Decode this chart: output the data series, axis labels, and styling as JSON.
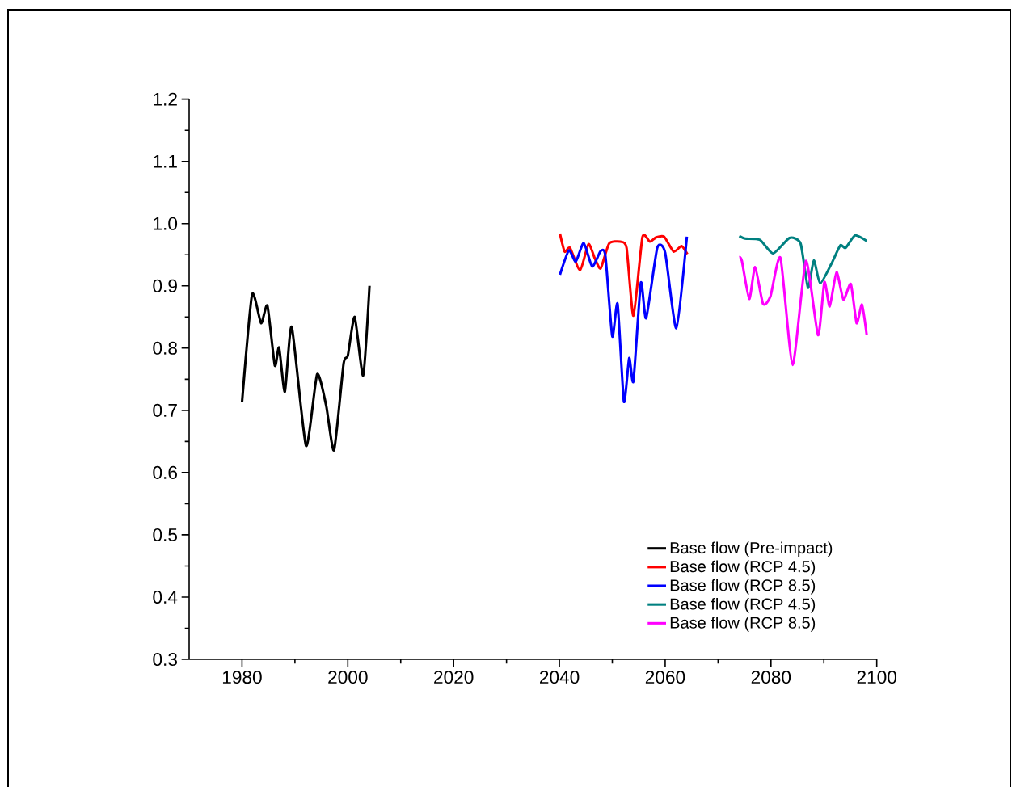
{
  "chart_data": {
    "type": "line",
    "series": [
      {
        "name": "Base flow (Pre-impact)",
        "color": "#000000",
        "x": [
          1980.0,
          1981.9,
          1983.6,
          1984.8,
          1986.2,
          1987.0,
          1988.1,
          1989.4,
          1992.1,
          1994.2,
          1995.9,
          1997.4,
          1999.2,
          2000.0,
          2001.3,
          2002.9,
          2004.1
        ],
        "values": [
          0.713,
          0.886,
          0.84,
          0.868,
          0.772,
          0.801,
          0.73,
          0.834,
          0.643,
          0.758,
          0.708,
          0.636,
          0.775,
          0.788,
          0.85,
          0.756,
          0.9
        ]
      },
      {
        "name": "Base flow (RCP 4.5)",
        "color": "#ff0000",
        "x": [
          2040.1,
          2041.0,
          2042.0,
          2043.9,
          2045.5,
          2046.7,
          2047.8,
          2049.4,
          2051.5,
          2052.7,
          2054.0,
          2055.7,
          2057.1,
          2058.3,
          2059.8,
          2061.6,
          2063.1,
          2064.2
        ],
        "values": [
          0.984,
          0.955,
          0.961,
          0.925,
          0.967,
          0.944,
          0.928,
          0.968,
          0.971,
          0.961,
          0.852,
          0.978,
          0.971,
          0.978,
          0.979,
          0.955,
          0.964,
          0.951
        ]
      },
      {
        "name": "Base flow (RCP 8.5)",
        "color": "#0000ff",
        "x": [
          2040.1,
          2041.8,
          2043.1,
          2044.6,
          2046.2,
          2047.8,
          2048.7,
          2050.0,
          2051.0,
          2052.2,
          2053.2,
          2054.0,
          2055.4,
          2056.4,
          2058.5,
          2060.0,
          2062.1,
          2064.1
        ],
        "values": [
          0.918,
          0.957,
          0.939,
          0.969,
          0.931,
          0.956,
          0.948,
          0.819,
          0.871,
          0.714,
          0.784,
          0.747,
          0.905,
          0.848,
          0.961,
          0.953,
          0.832,
          0.979
        ]
      },
      {
        "name": "Base flow (RCP 4.5)",
        "color": "#008080",
        "x": [
          2074.0,
          2075.1,
          2077.9,
          2080.4,
          2083.5,
          2085.6,
          2087.0,
          2088.1,
          2089.3,
          2091.4,
          2093.1,
          2094.1,
          2095.9,
          2098.1
        ],
        "values": [
          0.98,
          0.976,
          0.974,
          0.952,
          0.977,
          0.968,
          0.897,
          0.941,
          0.904,
          0.935,
          0.965,
          0.961,
          0.981,
          0.972
        ]
      },
      {
        "name": "Base flow (RCP 8.5)",
        "color": "#ff00ff",
        "x": [
          2074.0,
          2074.5,
          2075.9,
          2077.0,
          2078.5,
          2079.9,
          2081.8,
          2084.1,
          2086.6,
          2088.9,
          2090.1,
          2091.1,
          2092.4,
          2093.7,
          2095.1,
          2096.2,
          2097.2,
          2098.1
        ],
        "values": [
          0.946,
          0.94,
          0.879,
          0.93,
          0.871,
          0.883,
          0.945,
          0.773,
          0.94,
          0.821,
          0.906,
          0.867,
          0.922,
          0.878,
          0.903,
          0.84,
          0.87,
          0.821
        ]
      }
    ],
    "xlim": [
      1970,
      2100
    ],
    "xticks": [
      1980,
      2000,
      2020,
      2040,
      2060,
      2080,
      2100
    ],
    "ylim": [
      0.3,
      1.2
    ],
    "yticks": [
      0.3,
      0.4,
      0.5,
      0.6,
      0.7,
      0.8,
      0.9,
      {
        "value": 1.0,
        "label": "1.0"
      },
      1.1,
      1.2
    ],
    "legend": "bottom right"
  }
}
